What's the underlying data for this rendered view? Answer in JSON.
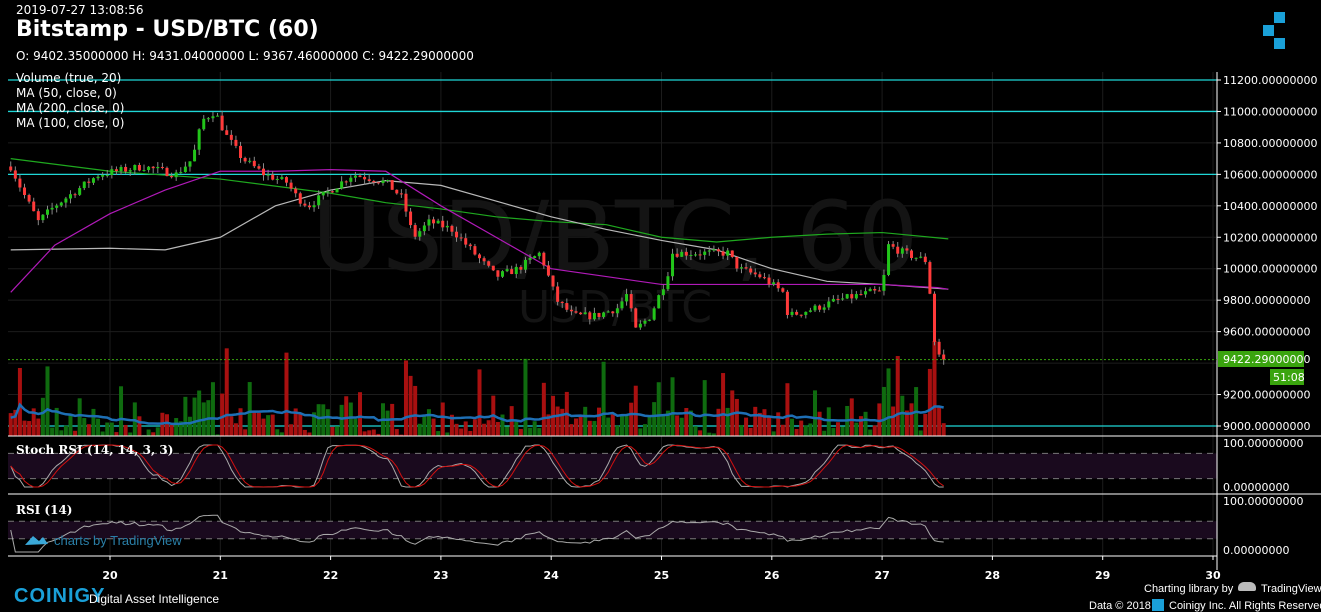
{
  "header": {
    "timestamp": "2019-07-27 13:08:56",
    "title": "Bitstamp - USD/BTC (60)",
    "ohlc": "O: 9402.35000000 H: 9431.04000000 L: 9367.46000000 C: 9422.29000000"
  },
  "legend": [
    "Volume (true, 20)",
    "MA (50, close, 0)",
    "MA (200, close, 0)",
    "MA (100, close, 0)"
  ],
  "watermark": {
    "big": "USD/BTC, 60",
    "small": "USD/BTC"
  },
  "panes": {
    "stoch_label": "Stoch RSI (14, 14, 3, 3)",
    "rsi_label": "RSI (14)"
  },
  "last_price_label": "9422.29000000",
  "countdown_label": "51:08",
  "tradingview_badge": "charts by TradingView",
  "footer": {
    "brand": "COINIGY",
    "tagline": "Digital Asset Intelligence",
    "charting": "Charting library by",
    "tv": "TradingView",
    "copyright": "Data © 2018",
    "rights": "Coinigy Inc. All Rights Reserved."
  },
  "colors": {
    "up": "#22c51a",
    "down": "#ff3a3a",
    "ma50": "#b01ab8",
    "ma100": "#b8b8b8",
    "ma200": "#1fa81f",
    "hline": "#1fd6d6",
    "volume_ma": "#1e6fb5",
    "last_price": "#3aa40e",
    "pane_band": "#1a0a1e",
    "brand": "#1aa0d8"
  },
  "chart_data": {
    "type": "candlestick",
    "interval": "60",
    "x_axis": {
      "ticks": [
        "20",
        "21",
        "22",
        "23",
        "24",
        "25",
        "26",
        "27",
        "28",
        "29",
        "30"
      ],
      "range_day": [
        19.1,
        30.0
      ]
    },
    "y_axis": {
      "ticks": [
        "11200.00000000",
        "11000.00000000",
        "10800.00000000",
        "10600.00000000",
        "10400.00000000",
        "10200.00000000",
        "10000.00000000",
        "9800.00000000",
        "9600.00000000",
        "9200.00000000",
        "9000.00000000"
      ],
      "range": [
        9000,
        11200
      ]
    },
    "horizontal_lines": [
      11200,
      11000,
      10600,
      9000
    ],
    "last_price": 9422.29,
    "price_path": [
      [
        19.1,
        10650
      ],
      [
        19.2,
        10500
      ],
      [
        19.35,
        10300
      ],
      [
        19.5,
        10400
      ],
      [
        19.7,
        10500
      ],
      [
        19.9,
        10600
      ],
      [
        20.3,
        10650
      ],
      [
        20.6,
        10600
      ],
      [
        20.75,
        10700
      ],
      [
        20.8,
        10850
      ],
      [
        20.85,
        10950
      ],
      [
        20.95,
        11000
      ],
      [
        21.05,
        10850
      ],
      [
        21.2,
        10700
      ],
      [
        21.4,
        10600
      ],
      [
        21.6,
        10550
      ],
      [
        21.7,
        10450
      ],
      [
        21.8,
        10400
      ],
      [
        22.0,
        10500
      ],
      [
        22.2,
        10600
      ],
      [
        22.5,
        10550
      ],
      [
        22.65,
        10450
      ],
      [
        22.75,
        10200
      ],
      [
        22.9,
        10300
      ],
      [
        23.1,
        10250
      ],
      [
        23.3,
        10100
      ],
      [
        23.5,
        9950
      ],
      [
        23.7,
        10000
      ],
      [
        23.9,
        10100
      ],
      [
        24.05,
        9800
      ],
      [
        24.2,
        9700
      ],
      [
        24.4,
        9700
      ],
      [
        24.6,
        9750
      ],
      [
        24.7,
        9850
      ],
      [
        24.75,
        9600
      ],
      [
        24.9,
        9700
      ],
      [
        25.05,
        9950
      ],
      [
        25.1,
        10100
      ],
      [
        25.3,
        10100
      ],
      [
        25.6,
        10100
      ],
      [
        25.7,
        10000
      ],
      [
        25.9,
        9950
      ],
      [
        26.0,
        9900
      ],
      [
        26.1,
        9850
      ],
      [
        26.15,
        9700
      ],
      [
        26.4,
        9750
      ],
      [
        26.6,
        9800
      ],
      [
        26.9,
        9850
      ],
      [
        27.0,
        9850
      ],
      [
        27.05,
        10150
      ],
      [
        27.2,
        10100
      ],
      [
        27.4,
        10050
      ],
      [
        27.45,
        9750
      ],
      [
        27.48,
        9500
      ],
      [
        27.52,
        9450
      ],
      [
        27.55,
        9422.29
      ]
    ],
    "ma50": [
      [
        19.1,
        9850
      ],
      [
        19.5,
        10150
      ],
      [
        20.0,
        10350
      ],
      [
        20.5,
        10500
      ],
      [
        21.0,
        10620
      ],
      [
        21.5,
        10620
      ],
      [
        22.0,
        10630
      ],
      [
        22.5,
        10620
      ],
      [
        23.0,
        10400
      ],
      [
        23.5,
        10200
      ],
      [
        24.0,
        10000
      ],
      [
        24.5,
        9950
      ],
      [
        25.0,
        9900
      ],
      [
        25.5,
        9900
      ],
      [
        26.0,
        9900
      ],
      [
        26.5,
        9900
      ],
      [
        27.0,
        9900
      ],
      [
        27.5,
        9880
      ],
      [
        27.6,
        9870
      ]
    ],
    "ma100": [
      [
        19.1,
        10120
      ],
      [
        20.0,
        10130
      ],
      [
        20.5,
        10120
      ],
      [
        21.0,
        10200
      ],
      [
        21.5,
        10400
      ],
      [
        22.0,
        10500
      ],
      [
        22.5,
        10560
      ],
      [
        23.0,
        10530
      ],
      [
        23.5,
        10430
      ],
      [
        24.0,
        10330
      ],
      [
        24.5,
        10250
      ],
      [
        25.0,
        10180
      ],
      [
        25.5,
        10120
      ],
      [
        26.0,
        10000
      ],
      [
        26.5,
        9920
      ],
      [
        27.0,
        9900
      ],
      [
        27.6,
        9870
      ]
    ],
    "ma200": [
      [
        19.1,
        10700
      ],
      [
        20.0,
        10620
      ],
      [
        21.0,
        10570
      ],
      [
        22.0,
        10480
      ],
      [
        22.5,
        10420
      ],
      [
        23.0,
        10380
      ],
      [
        23.5,
        10330
      ],
      [
        24.0,
        10300
      ],
      [
        24.5,
        10280
      ],
      [
        25.0,
        10200
      ],
      [
        25.5,
        10170
      ],
      [
        26.0,
        10200
      ],
      [
        26.5,
        10220
      ],
      [
        27.0,
        10230
      ],
      [
        27.6,
        10190
      ]
    ],
    "stoch_rsi": {
      "ticks": [
        "100.00000000",
        "0.00000000"
      ],
      "bands": [
        80,
        20
      ]
    },
    "rsi": {
      "ticks": [
        "100.00000000",
        "0.00000000"
      ],
      "bands": [
        70,
        30
      ]
    }
  }
}
